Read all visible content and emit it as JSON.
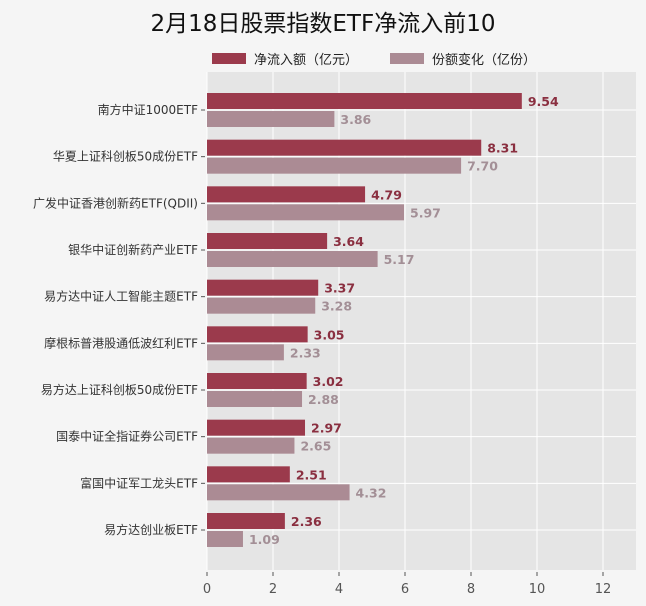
{
  "chart_data": {
    "type": "bar",
    "orientation": "horizontal",
    "title": "2月18日股票指数ETF净流入前10",
    "categories": [
      "南方中证1000ETF",
      "华夏上证科创板50成份ETF",
      "广发中证香港创新药ETF(QDII)",
      "银华中证创新药产业ETF",
      "易方达中证人工智能主题ETF",
      "摩根标普港股通低波红利ETF",
      "易方达上证科创板50成份ETF",
      "国泰中证全指证券公司ETF",
      "富国中证军工龙头ETF",
      "易方达创业板ETF"
    ],
    "series": [
      {
        "name": "净流入额（亿元）",
        "color": "#9b3a4c",
        "label_color": "#8a2f40",
        "values": [
          9.54,
          8.31,
          4.79,
          3.64,
          3.37,
          3.05,
          3.02,
          2.97,
          2.51,
          2.36
        ]
      },
      {
        "name": "份额变化（亿份）",
        "color": "#ab8b94",
        "label_color": "#a38f96",
        "values": [
          3.86,
          7.7,
          5.97,
          5.17,
          3.28,
          2.33,
          2.88,
          2.65,
          4.32,
          1.09
        ]
      }
    ],
    "xlim": [
      0,
      13
    ],
    "xticks": [
      0,
      2,
      4,
      6,
      8,
      10,
      12
    ],
    "grid": true,
    "legend": "top",
    "plot_bg": "#e5e5e5"
  }
}
